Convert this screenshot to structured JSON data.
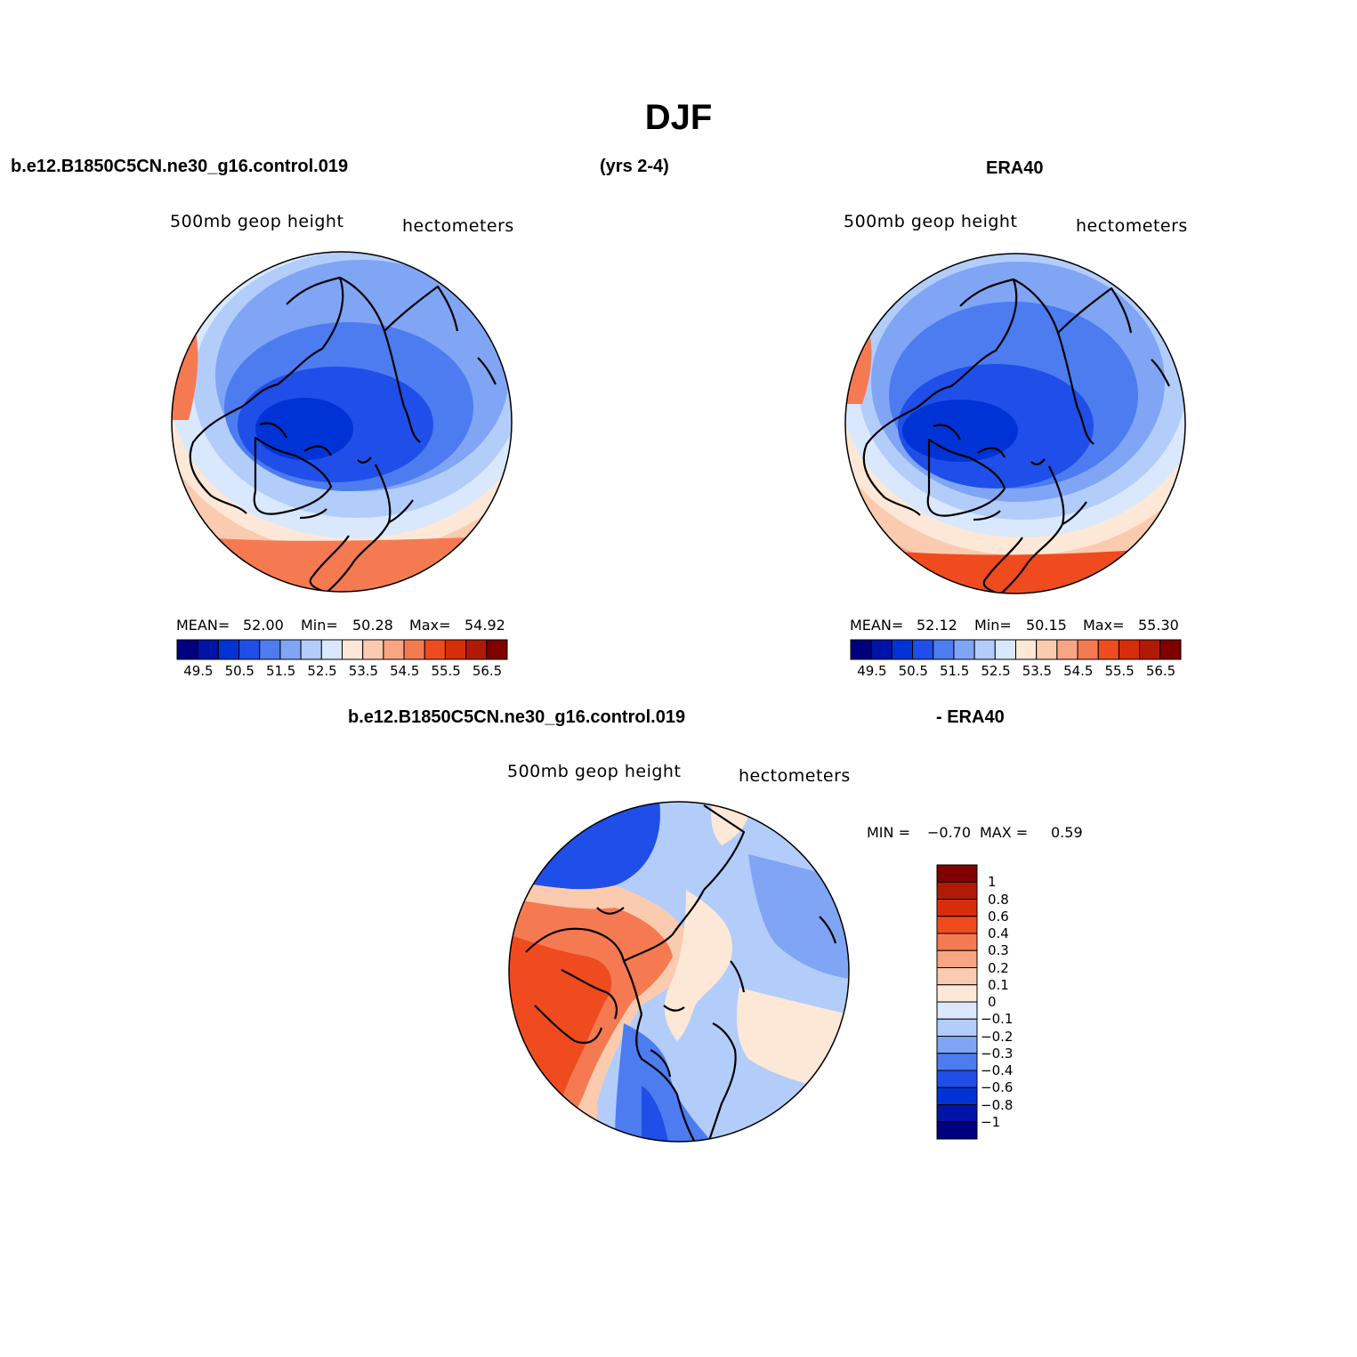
{
  "figure": {
    "title": "DJF",
    "case_name": "b.e12.B1850C5CN.ne30_g16.control.019",
    "years": "(yrs 2-4)",
    "reference": "ERA40",
    "diff_case": "b.e12.B1850C5CN.ne30_g16.control.019",
    "diff_suffix": "- ERA40"
  },
  "palette": {
    "levels_abs": [
      "49.5",
      "50.5",
      "51.5",
      "52.5",
      "53.5",
      "54.5",
      "55.5",
      "56.5"
    ],
    "colors": [
      "#00007f",
      "#0014a8",
      "#0033d6",
      "#1f4fe8",
      "#4d7cf0",
      "#80a5f5",
      "#b3cdfa",
      "#d9e8fc",
      "#fde8d7",
      "#fbcbb0",
      "#f8a584",
      "#f57a52",
      "#ef4b1f",
      "#d62e0b",
      "#b01a05",
      "#800000"
    ],
    "levels_diff": [
      "1",
      "0.8",
      "0.6",
      "0.4",
      "0.3",
      "0.2",
      "0.1",
      "0",
      "−0.1",
      "−0.2",
      "−0.3",
      "−0.4",
      "−0.6",
      "−0.8",
      "−1"
    ]
  },
  "panels": {
    "model": {
      "variable": "500mb  geop  height",
      "units": "hectometers",
      "mean_label": "MEAN=",
      "mean": "52.00",
      "min_label": "Min=",
      "min": "50.28",
      "max_label": "Max=",
      "max": "54.92"
    },
    "obs": {
      "variable": "500mb  geop  height",
      "units": "hectometers",
      "mean_label": "MEAN=",
      "mean": "52.12",
      "min_label": "Min=",
      "min": "50.15",
      "max_label": "Max=",
      "max": "55.30"
    },
    "diff": {
      "variable": "500mb  geop  height",
      "units": "hectometers",
      "min_label": "MIN =",
      "min": "−0.70",
      "max_label": "MAX =",
      "max": "0.59"
    }
  }
}
